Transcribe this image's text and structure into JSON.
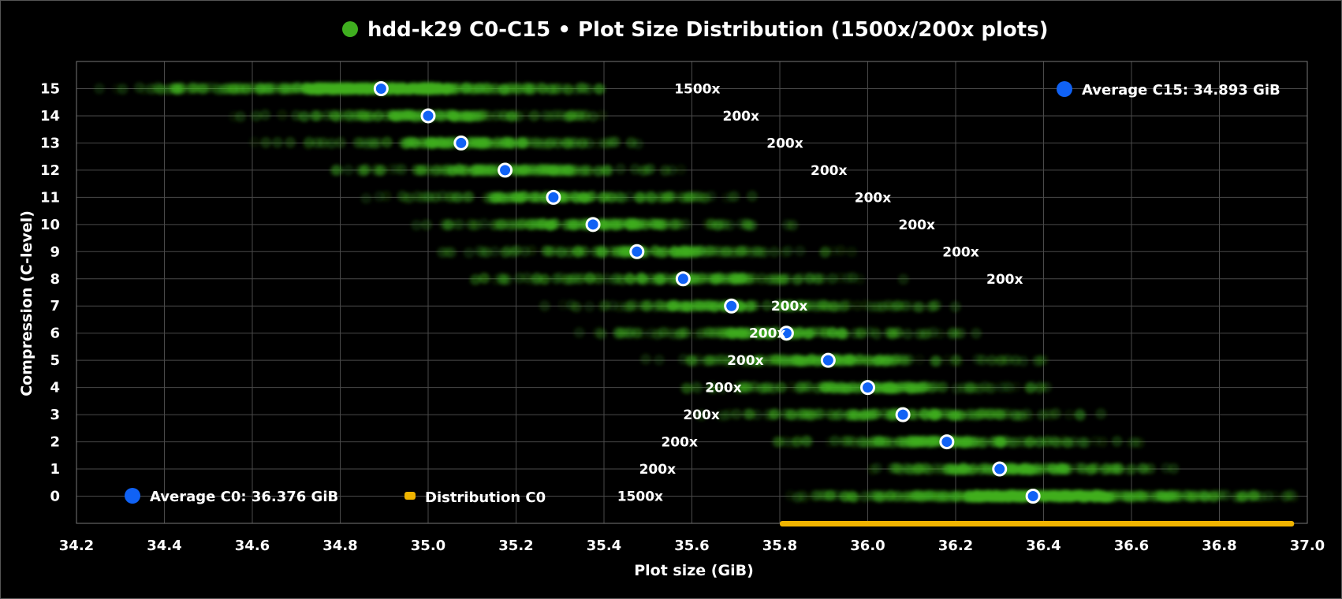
{
  "chart_data": {
    "type": "scatter",
    "title": "hdd-k29 C0-C15 • Plot Size Distribution (1500x/200x plots)",
    "xlabel": "Plot size (GiB)",
    "ylabel": "Compression (C-level)",
    "xlim": [
      34.2,
      37.0
    ],
    "ylim": [
      -1,
      16
    ],
    "xticks": [
      "34.2",
      "34.4",
      "34.6",
      "34.8",
      "35.0",
      "35.2",
      "35.4",
      "35.6",
      "35.8",
      "36.0",
      "36.2",
      "36.4",
      "36.6",
      "36.8",
      "37.0"
    ],
    "yticks": [
      "0",
      "1",
      "2",
      "3",
      "4",
      "5",
      "6",
      "7",
      "8",
      "9",
      "10",
      "11",
      "12",
      "13",
      "14",
      "15"
    ],
    "grid": true,
    "colors": {
      "background": "#000000",
      "distribution": "#3fae1f",
      "average": "#1062f5",
      "range_bar": "#f0b400",
      "text": "#ffffff",
      "grid": "#4a4a4a"
    },
    "averages": [
      {
        "c": 0,
        "x": 36.376,
        "label": "1500x"
      },
      {
        "c": 1,
        "x": 36.3,
        "label": "200x"
      },
      {
        "c": 2,
        "x": 36.18,
        "label": "200x"
      },
      {
        "c": 3,
        "x": 36.08,
        "label": "200x"
      },
      {
        "c": 4,
        "x": 36.0,
        "label": "200x"
      },
      {
        "c": 5,
        "x": 35.91,
        "label": "200x"
      },
      {
        "c": 6,
        "x": 35.815,
        "label": "200x"
      },
      {
        "c": 7,
        "x": 35.69,
        "label": "200x"
      },
      {
        "c": 8,
        "x": 35.58,
        "label": "200x"
      },
      {
        "c": 9,
        "x": 35.475,
        "label": "200x"
      },
      {
        "c": 10,
        "x": 35.375,
        "label": "200x"
      },
      {
        "c": 11,
        "x": 35.285,
        "label": "200x"
      },
      {
        "c": 12,
        "x": 35.175,
        "label": "200x"
      },
      {
        "c": 13,
        "x": 35.075,
        "label": "200x"
      },
      {
        "c": 14,
        "x": 35.0,
        "label": "200x"
      },
      {
        "c": 15,
        "x": 34.893,
        "label": "1500x"
      }
    ],
    "count_label_x": [
      35.43,
      35.48,
      35.53,
      35.58,
      35.63,
      35.68,
      35.73,
      35.78,
      36.27,
      36.17,
      36.07,
      35.97,
      35.87,
      35.77,
      35.67,
      35.56
    ],
    "distributions": [
      {
        "c": 0,
        "spread": [
          35.81,
          36.97
        ],
        "core": [
          36.23,
          36.55
        ]
      },
      {
        "c": 1,
        "spread": [
          35.9,
          36.75
        ],
        "core": [
          36.18,
          36.45
        ]
      },
      {
        "c": 2,
        "spread": [
          35.75,
          36.65
        ],
        "core": [
          36.05,
          36.32
        ]
      },
      {
        "c": 3,
        "spread": [
          35.6,
          36.55
        ],
        "core": [
          35.95,
          36.22
        ]
      },
      {
        "c": 4,
        "spread": [
          35.55,
          36.45
        ],
        "core": [
          35.88,
          36.15
        ]
      },
      {
        "c": 5,
        "spread": [
          35.45,
          36.4
        ],
        "core": [
          35.8,
          36.05
        ]
      },
      {
        "c": 6,
        "spread": [
          35.3,
          36.3
        ],
        "core": [
          35.68,
          35.95
        ]
      },
      {
        "c": 7,
        "spread": [
          35.2,
          36.2
        ],
        "core": [
          35.55,
          35.83
        ]
      },
      {
        "c": 8,
        "spread": [
          35.1,
          36.1
        ],
        "core": [
          35.45,
          35.72
        ]
      },
      {
        "c": 9,
        "spread": [
          35.0,
          36.0
        ],
        "core": [
          35.35,
          35.62
        ]
      },
      {
        "c": 10,
        "spread": [
          34.95,
          35.85
        ],
        "core": [
          35.25,
          35.52
        ]
      },
      {
        "c": 11,
        "spread": [
          34.85,
          35.75
        ],
        "core": [
          35.15,
          35.42
        ]
      },
      {
        "c": 12,
        "spread": [
          34.7,
          35.6
        ],
        "core": [
          35.05,
          35.32
        ]
      },
      {
        "c": 13,
        "spread": [
          34.6,
          35.5
        ],
        "core": [
          34.95,
          35.22
        ]
      },
      {
        "c": 14,
        "spread": [
          34.55,
          35.4
        ],
        "core": [
          34.88,
          35.12
        ]
      },
      {
        "c": 15,
        "spread": [
          34.25,
          35.4
        ],
        "core": [
          34.72,
          35.05
        ]
      }
    ],
    "range_bar_c0": [
      35.8,
      36.97
    ],
    "legend": {
      "average_c15": "Average C15: 34.893 GiB",
      "average_c0": "Average C0: 36.376 GiB",
      "distribution_c0": "Distribution C0"
    }
  }
}
